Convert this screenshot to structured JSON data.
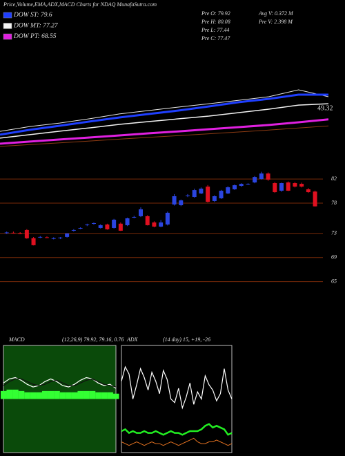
{
  "chart_data": [
    {
      "type": "line",
      "title": "Price,Volume,EMA,ADX,MACD Charts for NDAQ MunafaSutra.com",
      "annotations": [
        "Pre O: 79.92",
        "Pre H: 80.08",
        "Pre L: 77.44",
        "Pre C: 77.47",
        "Avg V: 0.372 M",
        "Pre V: 2.398 M",
        "49.32"
      ],
      "x": [
        0,
        1,
        2,
        3,
        4,
        5,
        6,
        7,
        8,
        9,
        10,
        11
      ],
      "xlim": [
        0,
        11
      ],
      "ylim": [
        30,
        100
      ],
      "series": [
        {
          "color": "#8b3a12",
          "width": 1,
          "values": [
            31.4,
            32.6,
            33.8,
            35.0,
            36.2,
            37.4,
            38.6,
            39.8,
            41.0,
            42.2,
            43.6,
            45.0
          ]
        },
        {
          "color": "#e8e8e8",
          "width": 1,
          "values": [
            41.4,
            44.6,
            46.9,
            49.7,
            52.9,
            55.2,
            57.5,
            59.7,
            62.0,
            64.3,
            68.9,
            64.3
          ]
        },
        {
          "name": "DOW ST: 79.6",
          "color": "#1f3fff",
          "width": 3,
          "values": [
            39.2,
            42.4,
            45.1,
            47.9,
            50.6,
            52.9,
            55.2,
            57.9,
            60.7,
            62.9,
            65.7,
            65.7
          ]
        },
        {
          "name": "DOW MT: 77.27",
          "color": "#f2f2f2",
          "width": 1.5,
          "values": [
            36.9,
            39.2,
            41.5,
            43.7,
            46.0,
            47.9,
            49.7,
            51.5,
            53.8,
            56.1,
            58.8,
            59.7
          ]
        },
        {
          "name": "DOW PT: 68.55",
          "color": "#e020e0",
          "width": 3,
          "values": [
            33.2,
            34.6,
            36.0,
            37.3,
            38.7,
            40.1,
            41.4,
            42.8,
            44.2,
            45.6,
            47.4,
            49.32
          ]
        }
      ]
    },
    {
      "type": "candlestick",
      "x": [
        1,
        2,
        3,
        4,
        5,
        6,
        7,
        8,
        9,
        10,
        11,
        12,
        13,
        14,
        15,
        16,
        17,
        18,
        19,
        20,
        21,
        22,
        23,
        24,
        25,
        26,
        27,
        28,
        29,
        30,
        31,
        32,
        33,
        34,
        35,
        36,
        37,
        38,
        39,
        40,
        41,
        42,
        43,
        44,
        45,
        46,
        47
      ],
      "xlim": [
        0,
        49
      ],
      "ylim": [
        61.3,
        85.9
      ],
      "yticks": [
        65,
        69,
        73,
        78,
        82
      ],
      "grid": true,
      "grid_color": "#7a2a08",
      "up_color": "#2b45e0",
      "down_color": "#e01020",
      "open": [
        73.05,
        73.1,
        73.0,
        73.55,
        72.2,
        72.35,
        72.35,
        72.15,
        72.2,
        72.41,
        73.5,
        73.85,
        74.4,
        74.6,
        73.89,
        74.47,
        73.89,
        74.6,
        74.35,
        75.65,
        75.84,
        75.84,
        74.81,
        74.12,
        74.47,
        77.78,
        77.66,
        79.2,
        79.03,
        79.6,
        80.74,
        78.35,
        78.8,
        79.6,
        80.29,
        80.86,
        81.1,
        81.43,
        82.0,
        82.91,
        81.32,
        80.06,
        81.43,
        81.32,
        81.2,
        80.29,
        79.92
      ],
      "high": [
        73.3,
        73.3,
        73.2,
        73.7,
        72.4,
        72.55,
        72.5,
        72.35,
        72.4,
        73.0,
        73.7,
        74.0,
        74.6,
        74.8,
        74.5,
        74.6,
        75.4,
        74.8,
        75.6,
        75.9,
        77.3,
        76.0,
        75.0,
        75.2,
        76.6,
        79.5,
        78.6,
        79.5,
        80.4,
        80.6,
        81.0,
        79.3,
        80.2,
        80.8,
        81.1,
        81.3,
        81.3,
        82.5,
        83.2,
        83.1,
        81.5,
        81.4,
        81.6,
        81.5,
        81.4,
        80.5,
        80.08
      ],
      "low": [
        72.9,
        72.95,
        72.85,
        72.1,
        71.0,
        72.2,
        72.2,
        72.0,
        72.05,
        72.3,
        73.3,
        73.7,
        74.2,
        74.45,
        73.8,
        73.6,
        73.8,
        73.4,
        74.2,
        75.5,
        75.7,
        74.3,
        74.0,
        74.0,
        74.3,
        77.6,
        77.5,
        79.0,
        78.9,
        79.5,
        78.1,
        78.2,
        78.7,
        79.5,
        80.2,
        80.7,
        81.0,
        81.3,
        81.9,
        81.7,
        79.7,
        79.9,
        80.0,
        80.6,
        80.6,
        79.7,
        77.44
      ],
      "close": [
        73.15,
        73.05,
        72.95,
        72.18,
        71.04,
        72.41,
        72.3,
        72.2,
        72.3,
        72.98,
        73.55,
        73.89,
        74.47,
        74.69,
        74.35,
        73.67,
        75.26,
        73.44,
        75.49,
        75.72,
        76.98,
        74.35,
        74.12,
        74.81,
        76.41,
        79.15,
        78.46,
        79.26,
        80.17,
        80.4,
        78.23,
        79.15,
        80.06,
        80.63,
        80.97,
        81.2,
        81.2,
        82.34,
        82.91,
        81.89,
        79.83,
        81.32,
        80.06,
        80.74,
        80.74,
        79.83,
        77.47
      ]
    },
    {
      "type": "line",
      "title": "MACD",
      "subtitle": "(12,26,9) 79.92, 79.16, 0.76",
      "background": "#0a4a0a",
      "x": [
        0,
        1,
        2,
        3,
        4,
        5,
        6,
        7,
        8,
        9,
        10,
        11,
        12,
        13,
        14,
        15,
        16,
        17,
        18,
        19
      ],
      "xlim": [
        0,
        19
      ],
      "ylim": [
        -4,
        4
      ],
      "bars": {
        "color": "#33ff33",
        "values": [
          0.6,
          0.7,
          0.7,
          0.6,
          0.5,
          0.5,
          0.5,
          0.6,
          0.6,
          0.6,
          0.5,
          0.5,
          0.5,
          0.6,
          0.6,
          0.6,
          0.5,
          0.5,
          0.5,
          0.4
        ]
      },
      "series": [
        {
          "color": "#ffffff",
          "width": 1.2,
          "values": [
            1.2,
            1.5,
            1.6,
            1.4,
            1.1,
            0.9,
            1.0,
            1.3,
            1.5,
            1.3,
            1.0,
            0.9,
            1.1,
            1.4,
            1.6,
            1.5,
            1.2,
            1.0,
            1.1,
            0.8
          ]
        },
        {
          "color": "#111111",
          "width": 1.2,
          "values": [
            1.0,
            1.3,
            1.5,
            1.5,
            1.3,
            1.1,
            1.0,
            1.1,
            1.3,
            1.4,
            1.2,
            1.0,
            1.0,
            1.2,
            1.4,
            1.5,
            1.3,
            1.1,
            1.0,
            0.9
          ]
        }
      ]
    },
    {
      "type": "line",
      "title": "ADX",
      "subtitle": "(14 day) 15, +19, -26",
      "background": "#000000",
      "x": [
        0,
        1,
        2,
        3,
        4,
        5,
        6,
        7,
        8,
        9,
        10,
        11,
        12,
        13,
        14,
        15,
        16,
        17,
        18,
        19,
        20,
        21,
        22,
        23,
        24,
        25,
        26,
        27,
        28,
        29
      ],
      "xlim": [
        0,
        29
      ],
      "ylim": [
        0,
        60
      ],
      "series": [
        {
          "color": "#ffffff",
          "width": 1.2,
          "values": [
            40,
            48,
            44,
            30,
            38,
            47,
            42,
            35,
            45,
            40,
            33,
            46,
            41,
            30,
            28,
            36,
            25,
            31,
            39,
            27,
            34,
            30,
            43,
            38,
            35,
            29,
            33,
            47,
            35,
            30
          ]
        },
        {
          "color": "#22ee22",
          "width": 2.5,
          "values": [
            12,
            13,
            11,
            12,
            11,
            11,
            12,
            11,
            11,
            12,
            11,
            10,
            11,
            12,
            11,
            11,
            10,
            11,
            12,
            12,
            12,
            13,
            15,
            16,
            14,
            15,
            14,
            13,
            10,
            11
          ]
        },
        {
          "color": "#e07020",
          "width": 1,
          "values": [
            6,
            5,
            4,
            5,
            6,
            5,
            4,
            5,
            6,
            5,
            5,
            4,
            5,
            6,
            5,
            4,
            5,
            6,
            7,
            8,
            6,
            5,
            5,
            6,
            6,
            7,
            6,
            5,
            4,
            5
          ]
        }
      ]
    }
  ]
}
